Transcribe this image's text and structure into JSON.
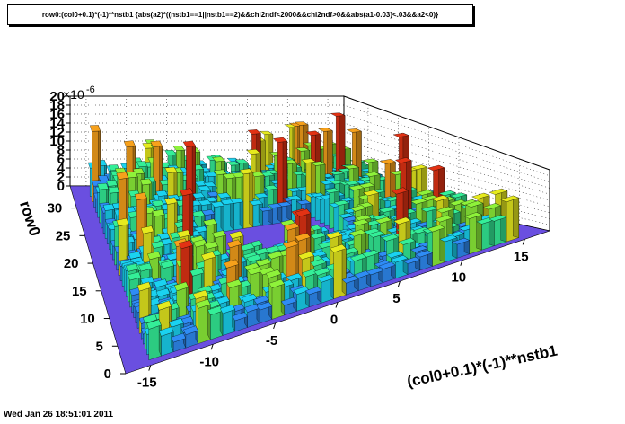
{
  "chart_data": {
    "type": "lego3d",
    "title": "row0:(col0+0.1)*(-1)**nstb1 {abs(a2)*((nstb1==1||nstb1==2)&&chi2ndf<2000&&chi2ndf>0&&abs(a1-0.03)<.03&&a2<0)}",
    "xlabel": "(col0+0.1)*(-1)**nstb1",
    "ylabel": "row0",
    "zlabel_exponent": "×10^-6",
    "xlim": [
      -17,
      17
    ],
    "ylim": [
      0,
      34
    ],
    "zlim": [
      0,
      20
    ],
    "x_ticks": [
      "-15",
      "-10",
      "-5",
      "0",
      "5",
      "10",
      "15"
    ],
    "x_tick_values": [
      -15,
      -10,
      -5,
      0,
      5,
      10,
      15
    ],
    "y_ticks": [
      "0",
      "5",
      "10",
      "15",
      "20",
      "25",
      "30"
    ],
    "y_tick_values": [
      0,
      5,
      10,
      15,
      20,
      25,
      30
    ],
    "z_ticks": [
      "0",
      "2",
      "4",
      "6",
      "8",
      "10",
      "12",
      "14",
      "16",
      "18",
      "20"
    ],
    "z_tick_values": [
      0,
      2,
      4,
      6,
      8,
      10,
      12,
      14,
      16,
      18,
      20
    ],
    "z_axis_multiplier": "10",
    "z_axis_exponent": "-6",
    "floor_color": "#6a4fe0",
    "colors": [
      "#4b3be0",
      "#2f8cf5",
      "#1ad2f0",
      "#34ef98",
      "#8ef23a",
      "#e6ea1e",
      "#f7a11b",
      "#e23214"
    ],
    "inner_gap": {
      "x": [
        -6,
        6
      ],
      "y": [
        12,
        22
      ]
    },
    "outer_boundary": {
      "x": [
        -17,
        17
      ],
      "y": [
        0,
        34
      ]
    }
  },
  "footer": {
    "date": "Wed Jan 26 18:51:01 2011"
  }
}
